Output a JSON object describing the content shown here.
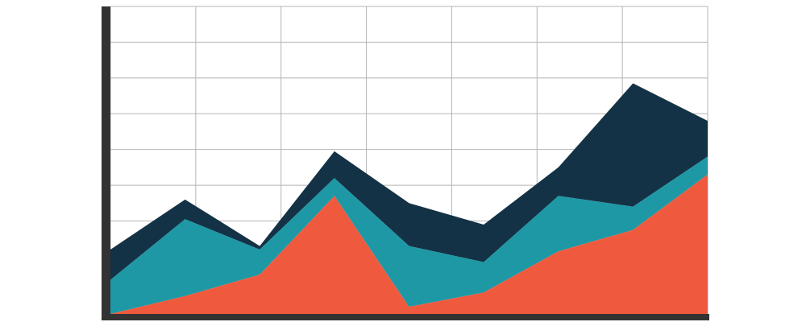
{
  "chart_data": {
    "type": "stacked-area",
    "x": [
      0,
      0.875,
      1.75,
      2.625,
      3.5,
      4.375,
      5.25,
      6.125,
      7
    ],
    "series": [
      {
        "color": "#ef5a3f",
        "values": [
          0,
          5,
          11,
          33,
          2,
          6,
          17.5,
          23.5,
          39
        ]
      },
      {
        "color": "#1e98a5",
        "values": [
          9.5,
          21.5,
          7,
          5,
          17,
          8.5,
          15.5,
          6.5,
          5
        ]
      },
      {
        "color": "#143246",
        "values": [
          8.5,
          5.5,
          1,
          7.5,
          12,
          10.5,
          8,
          34.5,
          10
        ]
      }
    ],
    "xlim": [
      0,
      7
    ],
    "xticks": [
      0,
      1,
      2,
      3,
      4,
      5,
      6,
      7
    ],
    "ylim": [
      0,
      86
    ],
    "yticks": [
      6,
      16,
      26,
      36,
      46,
      56,
      66,
      76,
      86
    ],
    "grid": true
  }
}
